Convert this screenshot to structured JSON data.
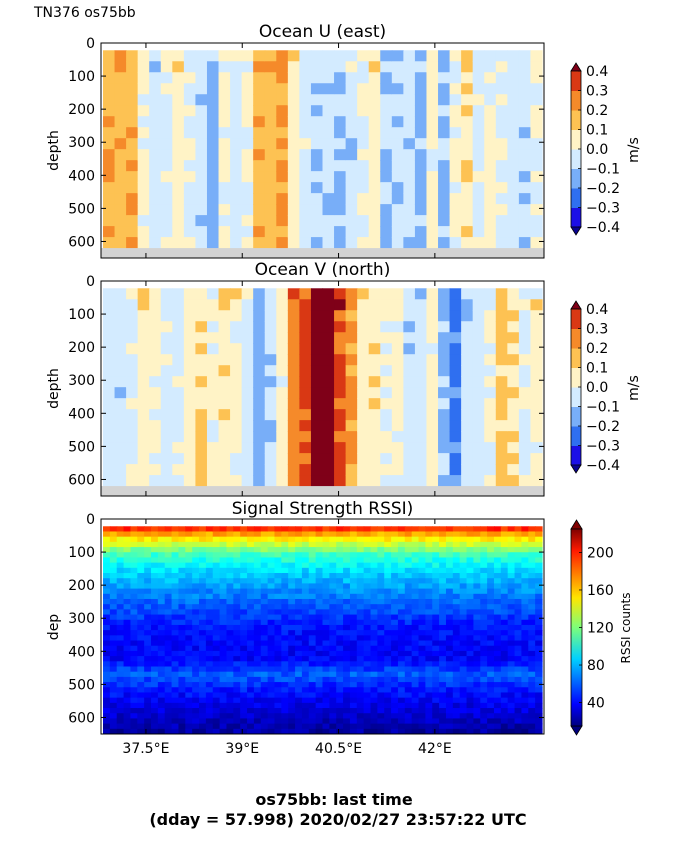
{
  "header": {
    "label": "TN376 os75bb"
  },
  "footer": {
    "line1": "os75bb: last time",
    "line2": "(dday = 57.998) 2020/02/27 23:57:22 UTC"
  },
  "colors": {
    "land_gray": "#d3d3d3",
    "bins": [
      "#1c0fe6",
      "#2f6ff0",
      "#78aef8",
      "#d3ebff",
      "#fff3c6",
      "#fdc253",
      "#f58a2a",
      "#d93814"
    ],
    "extend_low": "#0a0390",
    "extend_high": "#7f0018"
  },
  "chart_data": [
    {
      "type": "heatmap",
      "title": "Ocean U (east)",
      "ylabel": "depth",
      "ylim": [
        650,
        0
      ],
      "yticks": [
        0,
        100,
        200,
        300,
        400,
        500,
        600
      ],
      "xlim": [
        36.8,
        43.7
      ],
      "colorbar": {
        "label": "m/s",
        "levels": [
          -0.4,
          -0.3,
          -0.2,
          -0.1,
          0.0,
          0.1,
          0.2,
          0.3,
          0.4
        ],
        "ticklabels": [
          "−0.4",
          "−0.3",
          "−0.2",
          "−0.1",
          "0.0",
          "0.1",
          "0.2",
          "0.3",
          "0.4"
        ]
      },
      "data_depth_range": [
        22,
        620
      ],
      "profile": [
        0.18,
        0.16,
        0.17,
        0.02,
        -0.05,
        -0.03,
        0.05,
        0.0,
        -0.06,
        -0.15,
        0.02,
        -0.06,
        0.0,
        0.17,
        0.15,
        0.19,
        0.04,
        -0.04,
        -0.08,
        -0.08,
        -0.11,
        -0.09,
        -0.01,
        0.06,
        -0.11,
        -0.07,
        -0.06,
        -0.13,
        0.03,
        -0.12,
        0.02,
        0.07,
        -0.04,
        0.02,
        -0.02,
        -0.05,
        -0.1,
        0.0
      ]
    },
    {
      "type": "heatmap",
      "title": "Ocean V (north)",
      "ylabel": "depth",
      "ylim": [
        650,
        0
      ],
      "yticks": [
        0,
        100,
        200,
        300,
        400,
        500,
        600
      ],
      "xlim": [
        36.8,
        43.7
      ],
      "colorbar": {
        "label": "m/s",
        "levels": [
          -0.4,
          -0.3,
          -0.2,
          -0.1,
          0.0,
          0.1,
          0.2,
          0.3,
          0.4
        ],
        "ticklabels": [
          "−0.4",
          "−0.3",
          "−0.2",
          "−0.1",
          "0.0",
          "0.1",
          "0.2",
          "0.3",
          "0.4"
        ]
      },
      "data_depth_range": [
        22,
        620
      ],
      "profile": [
        -0.05,
        -0.06,
        -0.03,
        0.05,
        0.02,
        -0.04,
        -0.02,
        0.05,
        0.1,
        0.03,
        0.07,
        0.02,
        -0.06,
        -0.16,
        -0.09,
        0.04,
        0.25,
        0.33,
        0.45,
        0.45,
        0.33,
        0.22,
        0.05,
        0.08,
        0.0,
        0.02,
        -0.06,
        -0.05,
        0.04,
        -0.12,
        -0.22,
        -0.08,
        -0.05,
        0.0,
        0.12,
        0.08,
        -0.02,
        0.03
      ]
    },
    {
      "type": "heatmap",
      "title": "Signal Strength RSSI)",
      "ylabel": "dep",
      "ylim": [
        650,
        0
      ],
      "yticks": [
        0,
        100,
        200,
        300,
        400,
        500,
        600
      ],
      "xlim": [
        36.8,
        43.7
      ],
      "xticks": [
        37.5,
        39.0,
        40.5,
        42.0
      ],
      "xticklabels": [
        "37.5°E",
        "39°E",
        "40.5°E",
        "42°E"
      ],
      "colorbar": {
        "label": "RSSI counts",
        "range": [
          15,
          225
        ],
        "ticks": [
          40,
          80,
          120,
          160,
          200
        ],
        "ticklabels": [
          "40",
          "80",
          "120",
          "160",
          "200"
        ]
      },
      "data_depth_range": [
        22,
        650
      ],
      "layers": [
        {
          "depth": 22,
          "value": 205
        },
        {
          "depth": 40,
          "value": 170
        },
        {
          "depth": 70,
          "value": 140
        },
        {
          "depth": 110,
          "value": 105
        },
        {
          "depth": 160,
          "value": 85
        },
        {
          "depth": 240,
          "value": 65
        },
        {
          "depth": 330,
          "value": 45
        },
        {
          "depth": 420,
          "value": 40
        },
        {
          "depth": 470,
          "value": 60
        },
        {
          "depth": 520,
          "value": 45
        },
        {
          "depth": 600,
          "value": 30
        },
        {
          "depth": 650,
          "value": 20
        }
      ]
    }
  ]
}
